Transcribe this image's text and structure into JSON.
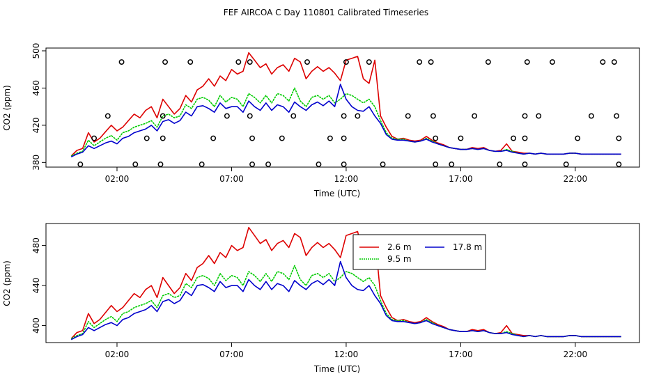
{
  "title": "FEF AIRCOA C  Day 110801  Calibrated Timeseries",
  "colors": {
    "red": "#dd0000",
    "green": "#00cc00",
    "blue": "#0000cc",
    "axis": "#000000"
  },
  "chart_data": [
    {
      "type": "line",
      "title": "FEF AIRCOA C  Day 110801  Calibrated Timeseries",
      "xlabel": "Time (UTC)",
      "ylabel": "CO2 (ppm)",
      "xlim": [
        -1.1,
        24.8
      ],
      "ylim": [
        375,
        503
      ],
      "x_ticks": [
        2,
        7,
        12,
        17,
        22
      ],
      "x_tick_labels": [
        "02:00",
        "07:00",
        "12:00",
        "17:00",
        "22:00"
      ],
      "y_ticks": [
        380,
        420,
        460,
        500
      ],
      "y_tick_labels": [
        "380",
        "420",
        "460",
        "500"
      ],
      "series": [
        {
          "name": "2.6 m",
          "color": "red"
        },
        {
          "name": "9.5 m",
          "color": "green"
        },
        {
          "name": "17.8 m",
          "color": "blue"
        }
      ],
      "flag_points": [
        {
          "x": 0.4,
          "y": 378
        },
        {
          "x": 1.0,
          "y": 406
        },
        {
          "x": 1.6,
          "y": 430
        },
        {
          "x": 2.2,
          "y": 488
        },
        {
          "x": 2.8,
          "y": 378
        },
        {
          "x": 3.3,
          "y": 406
        },
        {
          "x": 3.9,
          "y": 378
        },
        {
          "x": 4.0,
          "y": 406
        },
        {
          "x": 4.0,
          "y": 430
        },
        {
          "x": 4.1,
          "y": 488
        },
        {
          "x": 5.2,
          "y": 488
        },
        {
          "x": 5.7,
          "y": 378
        },
        {
          "x": 6.2,
          "y": 406
        },
        {
          "x": 6.8,
          "y": 430
        },
        {
          "x": 7.3,
          "y": 488
        },
        {
          "x": 7.8,
          "y": 488
        },
        {
          "x": 7.8,
          "y": 430
        },
        {
          "x": 7.9,
          "y": 406
        },
        {
          "x": 7.9,
          "y": 378
        },
        {
          "x": 8.6,
          "y": 378
        },
        {
          "x": 9.2,
          "y": 406
        },
        {
          "x": 9.7,
          "y": 430
        },
        {
          "x": 10.3,
          "y": 488
        },
        {
          "x": 10.8,
          "y": 378
        },
        {
          "x": 11.3,
          "y": 406
        },
        {
          "x": 11.9,
          "y": 378
        },
        {
          "x": 11.9,
          "y": 406
        },
        {
          "x": 11.9,
          "y": 430
        },
        {
          "x": 12.0,
          "y": 488
        },
        {
          "x": 12.5,
          "y": 430
        },
        {
          "x": 13.0,
          "y": 488
        },
        {
          "x": 13.6,
          "y": 378
        },
        {
          "x": 14.7,
          "y": 430
        },
        {
          "x": 15.2,
          "y": 488
        },
        {
          "x": 15.7,
          "y": 488
        },
        {
          "x": 15.8,
          "y": 430
        },
        {
          "x": 15.9,
          "y": 406
        },
        {
          "x": 15.9,
          "y": 378
        },
        {
          "x": 16.6,
          "y": 378
        },
        {
          "x": 17.0,
          "y": 406
        },
        {
          "x": 17.6,
          "y": 430
        },
        {
          "x": 18.2,
          "y": 488
        },
        {
          "x": 18.7,
          "y": 378
        },
        {
          "x": 19.3,
          "y": 406
        },
        {
          "x": 19.8,
          "y": 378
        },
        {
          "x": 19.8,
          "y": 406
        },
        {
          "x": 19.8,
          "y": 430
        },
        {
          "x": 19.9,
          "y": 488
        },
        {
          "x": 20.4,
          "y": 430
        },
        {
          "x": 21.0,
          "y": 488
        },
        {
          "x": 21.6,
          "y": 378
        },
        {
          "x": 22.1,
          "y": 406
        },
        {
          "x": 22.7,
          "y": 430
        },
        {
          "x": 23.2,
          "y": 488
        },
        {
          "x": 23.7,
          "y": 488
        },
        {
          "x": 23.8,
          "y": 430
        },
        {
          "x": 23.9,
          "y": 406
        },
        {
          "x": 23.9,
          "y": 378
        }
      ]
    },
    {
      "type": "line",
      "title": "",
      "xlabel": "Time (UTC)",
      "ylabel": "CO2 (ppm)",
      "xlim": [
        -1.1,
        24.8
      ],
      "ylim": [
        383,
        502
      ],
      "x_ticks": [
        2,
        7,
        12,
        17,
        22
      ],
      "x_tick_labels": [
        "02:00",
        "07:00",
        "12:00",
        "17:00",
        "22:00"
      ],
      "y_ticks": [
        400,
        440,
        480
      ],
      "y_tick_labels": [
        "400",
        "440",
        "480"
      ],
      "legend": {
        "position": "top-right",
        "entries": [
          "2.6 m",
          "17.8 m",
          "9.5 m"
        ]
      },
      "series": [
        {
          "name": "2.6 m",
          "color": "red"
        },
        {
          "name": "9.5 m",
          "color": "green"
        },
        {
          "name": "17.8 m",
          "color": "blue"
        }
      ]
    }
  ],
  "timeseries": {
    "x": [
      0,
      0.25,
      0.5,
      0.75,
      1,
      1.25,
      1.5,
      1.75,
      2,
      2.25,
      2.5,
      2.75,
      3,
      3.25,
      3.5,
      3.75,
      4,
      4.25,
      4.5,
      4.75,
      5,
      5.25,
      5.5,
      5.75,
      6,
      6.25,
      6.5,
      6.75,
      7,
      7.25,
      7.5,
      7.75,
      8,
      8.25,
      8.5,
      8.75,
      9,
      9.25,
      9.5,
      9.75,
      10,
      10.25,
      10.5,
      10.75,
      11,
      11.25,
      11.5,
      11.75,
      12,
      12.25,
      12.5,
      12.75,
      13,
      13.25,
      13.5,
      13.75,
      14,
      14.25,
      14.5,
      14.75,
      15,
      15.25,
      15.5,
      15.75,
      16,
      16.25,
      16.5,
      16.75,
      17,
      17.25,
      17.5,
      17.75,
      18,
      18.25,
      18.5,
      18.75,
      19,
      19.25,
      19.5,
      19.75,
      20,
      20.25,
      20.5,
      20.75,
      21,
      21.25,
      21.5,
      21.75,
      22,
      22.25,
      22.5,
      22.75,
      23,
      23.25,
      23.5,
      23.75,
      24
    ],
    "red": [
      387,
      393,
      395,
      412,
      402,
      406,
      413,
      420,
      414,
      418,
      425,
      432,
      428,
      436,
      440,
      428,
      448,
      440,
      432,
      438,
      452,
      445,
      458,
      462,
      470,
      462,
      473,
      468,
      480,
      475,
      478,
      498,
      490,
      482,
      486,
      475,
      482,
      485,
      478,
      492,
      488,
      470,
      478,
      483,
      478,
      482,
      476,
      468,
      490,
      492,
      494,
      470,
      465,
      490,
      430,
      418,
      408,
      405,
      406,
      404,
      403,
      404,
      408,
      404,
      401,
      399,
      396,
      395,
      394,
      394,
      396,
      395,
      396,
      393,
      392,
      393,
      400,
      392,
      391,
      390,
      390,
      389,
      390,
      389,
      389,
      389,
      389,
      390,
      390,
      389,
      389,
      389,
      389,
      389,
      389,
      389,
      389
    ],
    "green": [
      387,
      390,
      392,
      404,
      398,
      402,
      406,
      409,
      404,
      412,
      414,
      418,
      420,
      422,
      425,
      418,
      430,
      432,
      428,
      430,
      442,
      438,
      448,
      450,
      447,
      440,
      452,
      445,
      450,
      448,
      440,
      454,
      450,
      444,
      452,
      444,
      454,
      452,
      446,
      460,
      446,
      440,
      450,
      452,
      448,
      452,
      444,
      448,
      454,
      452,
      448,
      444,
      448,
      440,
      425,
      412,
      406,
      405,
      405,
      403,
      402,
      403,
      406,
      403,
      400,
      398,
      396,
      395,
      394,
      394,
      395,
      394,
      395,
      393,
      392,
      392,
      394,
      392,
      390,
      389,
      390,
      389,
      390,
      389,
      389,
      389,
      389,
      390,
      390,
      389,
      389,
      389,
      389,
      389,
      389,
      389,
      389
    ],
    "blue": [
      386,
      389,
      391,
      398,
      395,
      398,
      401,
      403,
      400,
      406,
      408,
      412,
      414,
      416,
      420,
      414,
      424,
      426,
      422,
      425,
      434,
      430,
      440,
      441,
      438,
      434,
      444,
      438,
      440,
      440,
      434,
      446,
      440,
      436,
      444,
      436,
      442,
      440,
      434,
      445,
      440,
      436,
      442,
      445,
      441,
      446,
      440,
      464,
      448,
      440,
      436,
      435,
      440,
      430,
      422,
      410,
      405,
      404,
      404,
      403,
      402,
      403,
      405,
      402,
      400,
      398,
      396,
      395,
      394,
      394,
      395,
      394,
      395,
      393,
      392,
      392,
      393,
      391,
      390,
      389,
      390,
      389,
      390,
      389,
      389,
      389,
      389,
      390,
      390,
      389,
      389,
      389,
      389,
      389,
      389,
      389,
      389
    ]
  }
}
